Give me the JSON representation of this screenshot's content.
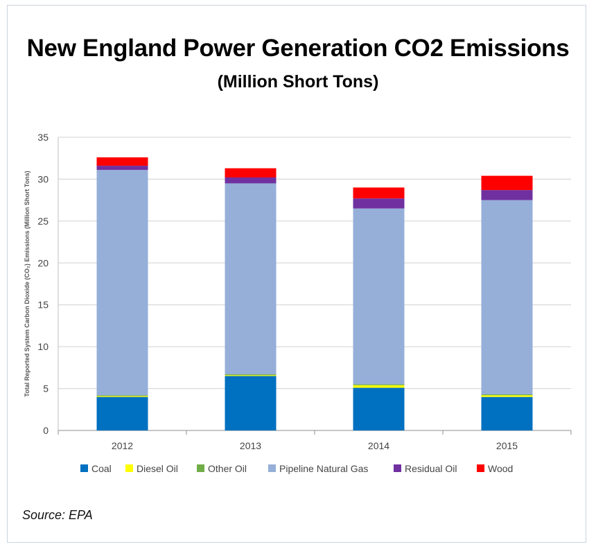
{
  "title": "New England Power Generation CO2 Emissions",
  "subtitle": "(Million Short Tons)",
  "source": "Source: EPA",
  "chart_data": {
    "type": "bar",
    "stacked": true,
    "categories": [
      "2012",
      "2013",
      "2014",
      "2015"
    ],
    "series": [
      {
        "name": "Coal",
        "color": "#0070c0",
        "values": [
          4.0,
          6.5,
          5.1,
          4.0
        ]
      },
      {
        "name": "Diesel Oil",
        "color": "#ffff00",
        "values": [
          0.1,
          0.1,
          0.3,
          0.2
        ]
      },
      {
        "name": "Other Oil",
        "color": "#70ad47",
        "values": [
          0.1,
          0.1,
          0.1,
          0.1
        ]
      },
      {
        "name": "Pipeline Natural Gas",
        "color": "#95afd8",
        "values": [
          26.9,
          22.8,
          21.0,
          23.2
        ]
      },
      {
        "name": "Residual Oil",
        "color": "#7030a0",
        "values": [
          0.5,
          0.7,
          1.2,
          1.2
        ]
      },
      {
        "name": "Wood",
        "color": "#ff0000",
        "values": [
          1.0,
          1.1,
          1.3,
          1.7
        ]
      }
    ],
    "ylabel": "Total Reported System Carbon Dioxide (CO₂) Emissions (Million Short Tons)",
    "xlabel": "",
    "ylim": [
      0,
      35
    ],
    "yticks": [
      0,
      5,
      10,
      15,
      20,
      25,
      30,
      35
    ],
    "grid": true,
    "legend_position": "bottom"
  }
}
